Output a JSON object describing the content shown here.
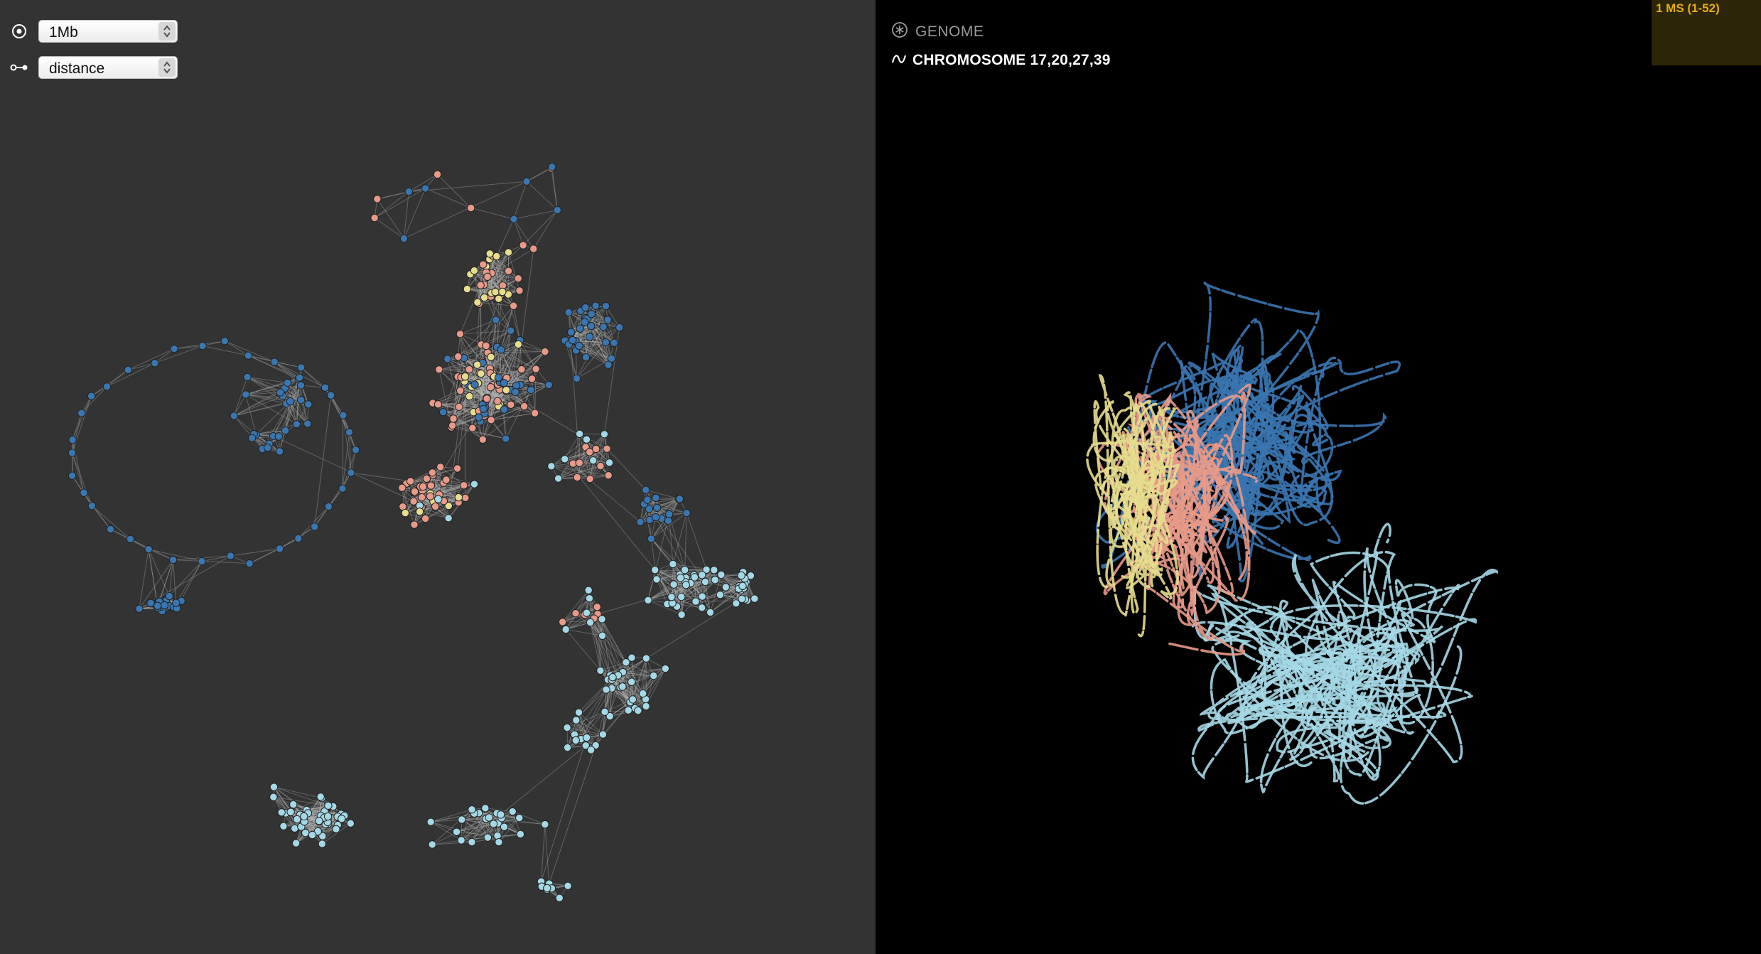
{
  "controls": {
    "resolution": {
      "icon": "target-icon",
      "value": "1Mb"
    },
    "metric": {
      "icon": "link-icon",
      "value": "distance"
    }
  },
  "header": {
    "genome_icon": "asterisk-icon",
    "genome_label": "GENOME",
    "chromosome_icon": "wave-icon",
    "chromosome_label": "CHROMOSOME 17,20,27,39"
  },
  "corner_panel": {
    "label": "1 MS (1-52)"
  },
  "colors": {
    "left_bg": "#333333",
    "right_bg": "#000000",
    "dark_blue": "#3a76b0",
    "salmon": "#e89a8a",
    "yellow": "#e7dd8e",
    "light_blue": "#a5d8e6",
    "edge": "#b9b9b9",
    "accent": "#e6ac10"
  }
}
